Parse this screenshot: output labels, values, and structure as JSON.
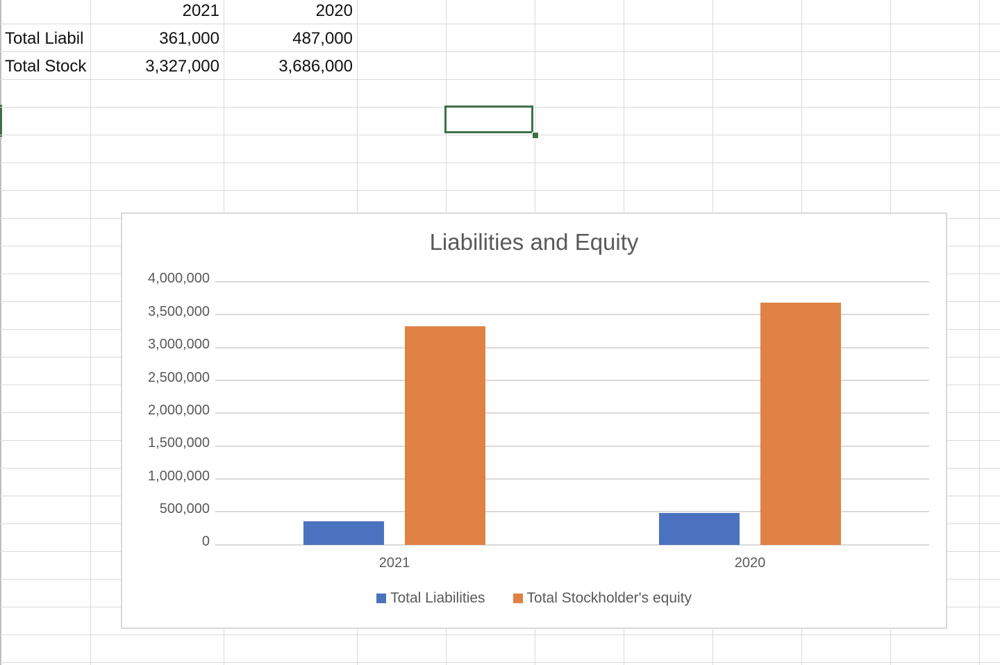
{
  "spreadsheet": {
    "header_row": {
      "col_b": "2021",
      "col_c": "2020"
    },
    "rows": [
      {
        "label": "Total Liabil",
        "col_b": "361,000",
        "col_c": "487,000"
      },
      {
        "label": "Total Stock",
        "col_b": "3,327,000",
        "col_c": "3,686,000"
      }
    ],
    "selection_color": "#3d7048"
  },
  "chart_data": {
    "type": "bar",
    "title": "Liabilities and Equity",
    "categories": [
      "2021",
      "2020"
    ],
    "series": [
      {
        "name": "Total Liabilities",
        "values": [
          361000,
          487000
        ],
        "color": "#4a72be"
      },
      {
        "name": "Total Stockholder's equity",
        "values": [
          3327000,
          3686000
        ],
        "color": "#e08244"
      }
    ],
    "xlabel": "",
    "ylabel": "",
    "ylim": [
      0,
      4000000
    ],
    "yticks": [
      "4,000,000",
      "3,500,000",
      "3,000,000",
      "2,500,000",
      "2,000,000",
      "1,500,000",
      "1,000,000",
      "500,000",
      "0"
    ],
    "grid": true,
    "legend_position": "bottom"
  }
}
